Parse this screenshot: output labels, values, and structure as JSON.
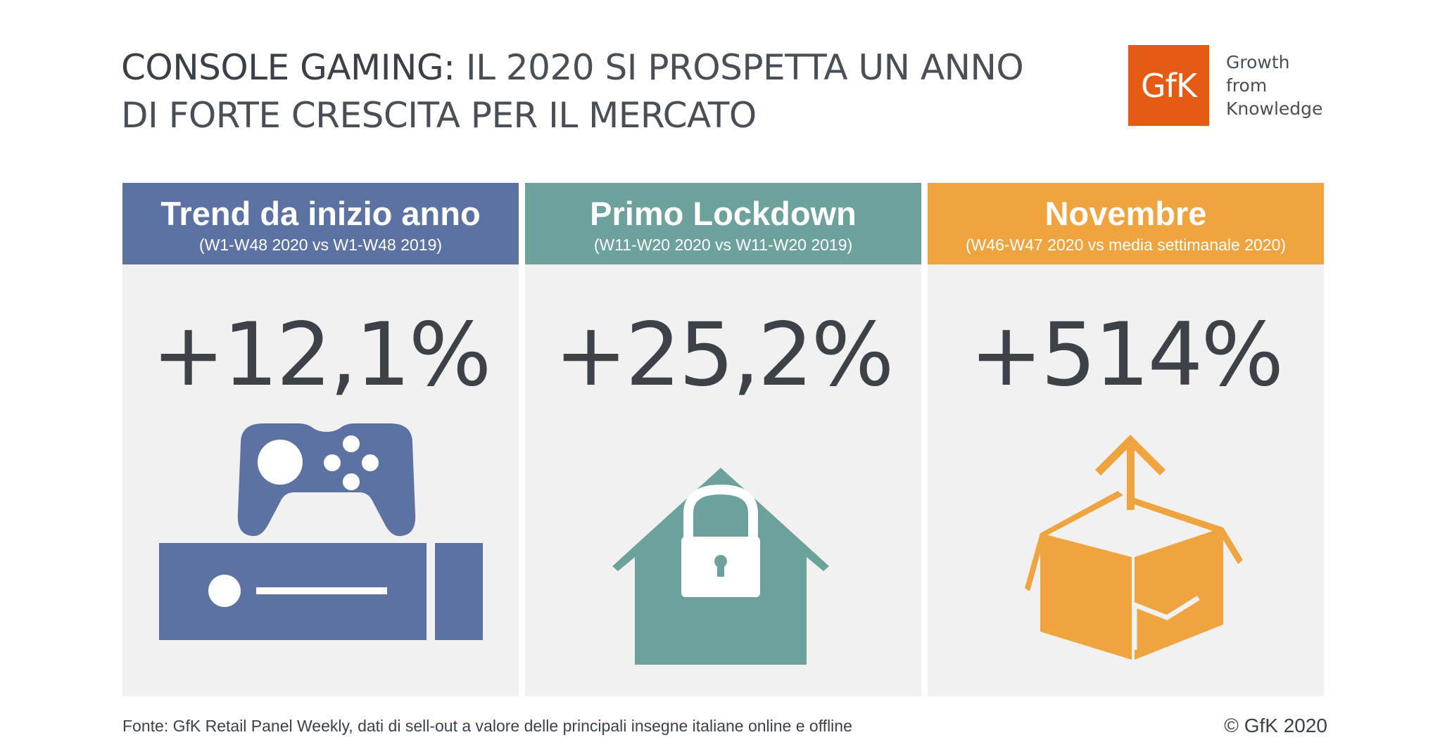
{
  "headline": {
    "bold_part": "CONSOLE GAMING:",
    "rest": " IL 2020 SI PROSPETTA UN ANNO DI FORTE CRESCITA PER IL MERCATO"
  },
  "logo": {
    "mark": "GfK",
    "tagline_lines": [
      "Growth",
      "from",
      "Knowledge"
    ],
    "brand_color": "#e55b13"
  },
  "panels": [
    {
      "title": "Trend da inizio anno",
      "subtitle": "(W1-W48 2020 vs W1-W48 2019)",
      "value": "+12,1%",
      "icon": "game-console-icon",
      "color": "#5c72a3"
    },
    {
      "title": "Primo Lockdown",
      "subtitle": "(W11-W20 2020 vs W11-W20 2019)",
      "value": "+25,2%",
      "icon": "locked-house-icon",
      "color": "#6da19c"
    },
    {
      "title": "Novembre",
      "subtitle": "(W46-W47 2020 vs media settimanale 2020)",
      "value": "+514%",
      "icon": "open-box-arrow-icon",
      "color": "#f0a440"
    }
  ],
  "footer": {
    "source": "Fonte: GfK Retail Panel Weekly, dati di sell-out a valore delle principali insegne italiane online e offline",
    "copyright": "© GfK 2020"
  }
}
